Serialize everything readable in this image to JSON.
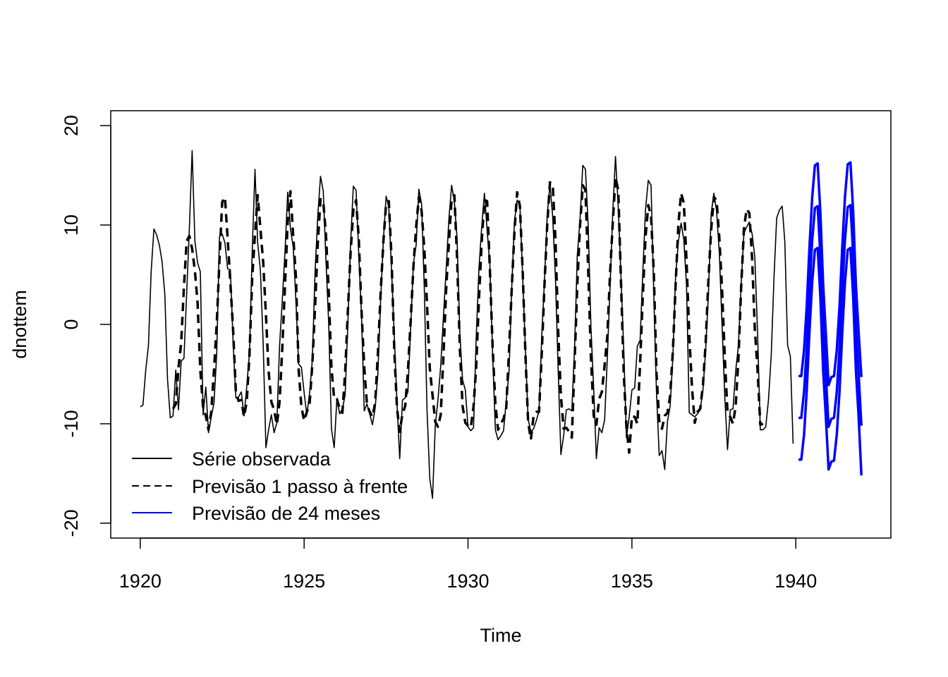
{
  "chart_data": {
    "type": "line",
    "title": "",
    "xlabel": "Time",
    "ylabel": "dnottem",
    "xlim": [
      1919.1,
      1942.9
    ],
    "ylim": [
      -21.5,
      21.5
    ],
    "x_ticks": [
      1920,
      1925,
      1930,
      1935,
      1940
    ],
    "x_tick_labels": [
      "1920",
      "1925",
      "1930",
      "1935",
      "1940"
    ],
    "y_ticks": [
      -20,
      -10,
      0,
      10,
      20
    ],
    "y_tick_labels": [
      "-20",
      "-10",
      "0",
      "10",
      "20"
    ],
    "frequency": 12,
    "grid": false,
    "legend_position": "bottom-left",
    "legend": [
      {
        "label": "Série observada",
        "color": "#000000",
        "style": "solid"
      },
      {
        "label": "Previsão 1 passo à frente",
        "color": "#000000",
        "style": "dashed"
      },
      {
        "label": "Previsão de 24 meses",
        "color": "#0000FF",
        "style": "solid"
      }
    ],
    "observed": {
      "start": 1920,
      "values": [
        -8.3,
        -8.1,
        -4.6,
        -2.2,
        5.3,
        9.6,
        9.0,
        8.0,
        6.3,
        3.0,
        -5.5,
        -9.4,
        -9.2,
        -4.6,
        -8.6,
        -3.7,
        -3.4,
        3.2,
        9.7,
        17.5,
        8.4,
        6.2,
        5.3,
        -9.1,
        -6.3,
        -10.9,
        -9.3,
        -7.9,
        -2.9,
        8.8,
        9.1,
        8.2,
        5.6,
        5.5,
        -1.8,
        -7.4,
        -7.3,
        -6.8,
        -9.2,
        -6.2,
        -2.8,
        7.4,
        15.6,
        8.2,
        5.4,
        -1.9,
        -12.4,
        -10.6,
        -9.1,
        -10.9,
        -9.9,
        -2.2,
        2.4,
        7.4,
        13.3,
        9.6,
        7.8,
        2.3,
        -4.0,
        -4.3,
        -6.9,
        -9.1,
        -6.9,
        -3.6,
        5.3,
        10.9,
        14.9,
        13.4,
        6.3,
        0.1,
        -10.5,
        -12.4,
        -7.5,
        -9.0,
        -8.5,
        -7.1,
        -0.1,
        8.1,
        13.9,
        13.5,
        7.1,
        1.0,
        -8.7,
        -8.0,
        -9.0,
        -10.1,
        -8.4,
        -5.0,
        2.4,
        8.4,
        12.9,
        11.8,
        5.5,
        -1.2,
        -7.9,
        -13.5,
        -7.6,
        -7.4,
        -6.8,
        -0.3,
        6.1,
        8.0,
        13.6,
        12.1,
        3.5,
        -8.6,
        -15.5,
        -17.5,
        -10.2,
        -7.6,
        -4.2,
        0.8,
        5.5,
        10.6,
        14.0,
        12.3,
        8.7,
        -0.9,
        -5.6,
        -6.6,
        -10.3,
        -10.7,
        -10.4,
        -1.4,
        5.6,
        9.8,
        13.2,
        9.5,
        6.0,
        -3.0,
        -10.6,
        -11.6,
        -11.2,
        -10.7,
        -7.7,
        -4.9,
        3.7,
        10.4,
        12.5,
        12.0,
        4.7,
        -2.5,
        -9.5,
        -10.8,
        -10.5,
        -9.7,
        -8.7,
        -1.1,
        4.5,
        11.0,
        14.1,
        10.8,
        4.6,
        -4.5,
        -13.1,
        -11.2,
        -8.6,
        -8.5,
        -8.7,
        -2.4,
        6.9,
        10.5,
        16.0,
        15.6,
        9.9,
        -0.3,
        -6.5,
        -13.5,
        -10.4,
        -10.9,
        -9.6,
        -3.4,
        3.8,
        11.4,
        16.9,
        11.8,
        4.8,
        -2.6,
        -11.4,
        -9.3,
        -6.6,
        -6.4,
        -2.2,
        -1.6,
        5.4,
        11.6,
        14.5,
        14.0,
        3.0,
        -6.8,
        -13.2,
        -12.7,
        -14.6,
        -9.8,
        -8.2,
        -3.2,
        4.8,
        8.3,
        10.2,
        8.5,
        3.9,
        -8.9,
        -9.1,
        -9.3,
        -9.0,
        -8.6,
        -6.6,
        -2.6,
        3.0,
        11.1,
        13.2,
        11.4,
        7.2,
        -0.1,
        -7.2,
        -12.6,
        -8.6,
        -8.5,
        -4.7,
        -2.1,
        4.1,
        9.2,
        9.8,
        10.3,
        9.1,
        6.8,
        -0.8,
        -10.6,
        -10.6,
        -10.3,
        -7.6,
        -3.1,
        4.7,
        10.7,
        11.5,
        11.9,
        8.3,
        -2.1,
        -3.2,
        -12.0
      ]
    },
    "one_step_forecast": {
      "start": 1921,
      "values": [
        -8.5,
        -8.0,
        -4.4,
        -1.8,
        3.8,
        8.4,
        8.9,
        7.6,
        5.4,
        2.2,
        -4.6,
        -8.3,
        -9.2,
        -10.6,
        -8.8,
        -4.6,
        0.1,
        6.4,
        12.3,
        12.8,
        8.7,
        4.2,
        -0.6,
        -6.8,
        -7.7,
        -7.6,
        -9.3,
        -7.7,
        -3.0,
        4.7,
        9.1,
        13.0,
        9.6,
        6.3,
        1.0,
        -4.7,
        -7.8,
        -8.6,
        -10.1,
        -7.8,
        -2.4,
        4.0,
        10.4,
        13.4,
        8.9,
        4.7,
        -4.5,
        -8.3,
        -9.7,
        -8.8,
        -8.0,
        -4.0,
        1.8,
        8.1,
        12.6,
        12.4,
        8.9,
        3.3,
        -4.4,
        -7.5,
        -7.5,
        -8.5,
        -8.9,
        -4.9,
        1.2,
        7.2,
        11.5,
        12.5,
        8.7,
        1.4,
        -4.3,
        -8.0,
        -8.8,
        -9.3,
        -7.9,
        -3.0,
        3.1,
        8.3,
        12.2,
        12.4,
        6.7,
        -2.6,
        -8.4,
        -10.8,
        -9.0,
        -8.2,
        -4.7,
        0.3,
        5.8,
        9.8,
        12.8,
        11.4,
        7.6,
        2.0,
        -4.4,
        -7.1,
        -9.8,
        -10.3,
        -9.1,
        -3.1,
        3.5,
        8.2,
        12.7,
        13.0,
        6.7,
        -2.3,
        -8.2,
        -9.9,
        -10.2,
        -10.4,
        -8.3,
        -4.3,
        2.5,
        8.3,
        12.5,
        12.4,
        5.6,
        -2.3,
        -8.0,
        -10.6,
        -10.0,
        -9.5,
        -8.4,
        -2.8,
        3.6,
        9.4,
        13.3,
        11.9,
        5.4,
        -3.0,
        -9.8,
        -11.6,
        -9.2,
        -8.8,
        -8.8,
        -2.8,
        4.1,
        10.0,
        14.3,
        14.1,
        8.5,
        -0.6,
        -7.2,
        -10.5,
        -10.4,
        -10.8,
        -11.4,
        -3.8,
        3.9,
        9.9,
        14.0,
        13.5,
        5.5,
        -3.3,
        -9.2,
        -10.1,
        -7.5,
        -6.8,
        -4.1,
        -1.2,
        5.1,
        10.3,
        14.8,
        13.5,
        4.3,
        -4.9,
        -10.3,
        -12.9,
        -9.2,
        -9.3,
        -10.0,
        -3.9,
        3.0,
        8.8,
        12.0,
        10.9,
        5.2,
        -4.9,
        -9.7,
        -10.5,
        -9.2,
        -8.9,
        -7.2,
        -2.6,
        3.9,
        10.0,
        13.2,
        12.2,
        6.4,
        -1.1,
        -6.4,
        -9.9,
        -8.8,
        -8.5,
        -6.1,
        -1.9,
        4.4,
        9.5,
        12.8,
        12.5,
        8.7,
        3.5,
        -3.2,
        -8.9,
        -9.3,
        -10.0,
        -8.2,
        -3.4,
        3.8,
        9.6,
        11.6,
        11.2,
        6.6,
        -0.4,
        -4.6,
        -10.1,
        -10.0
      ]
    },
    "forecast_24_months": {
      "start": 1940.0833,
      "mean": [
        -9.4,
        -9.4,
        -6.8,
        -2.5,
        3.5,
        8.5,
        11.7,
        11.9,
        6.9,
        -0.4,
        -5.1,
        -10.3,
        -9.5,
        -9.4,
        -6.8,
        -2.5,
        3.5,
        8.5,
        11.8,
        12.0,
        7.0,
        -0.3,
        -5.0,
        -10.2
      ],
      "lower": [
        -13.6,
        -13.6,
        -11.1,
        -6.7,
        -0.7,
        4.3,
        7.5,
        7.7,
        2.7,
        -4.6,
        -9.3,
        -14.6,
        -13.8,
        -13.7,
        -11.1,
        -6.8,
        -0.8,
        4.2,
        7.5,
        7.7,
        2.7,
        -4.6,
        -9.3,
        -15.2
      ],
      "upper": [
        -5.2,
        -5.2,
        -2.6,
        1.8,
        7.8,
        12.8,
        16.0,
        16.2,
        11.2,
        4.0,
        -0.9,
        -6.1,
        -5.3,
        -5.2,
        -2.6,
        1.8,
        7.8,
        12.8,
        16.1,
        16.3,
        11.3,
        4.0,
        -0.8,
        -5.3
      ]
    }
  }
}
